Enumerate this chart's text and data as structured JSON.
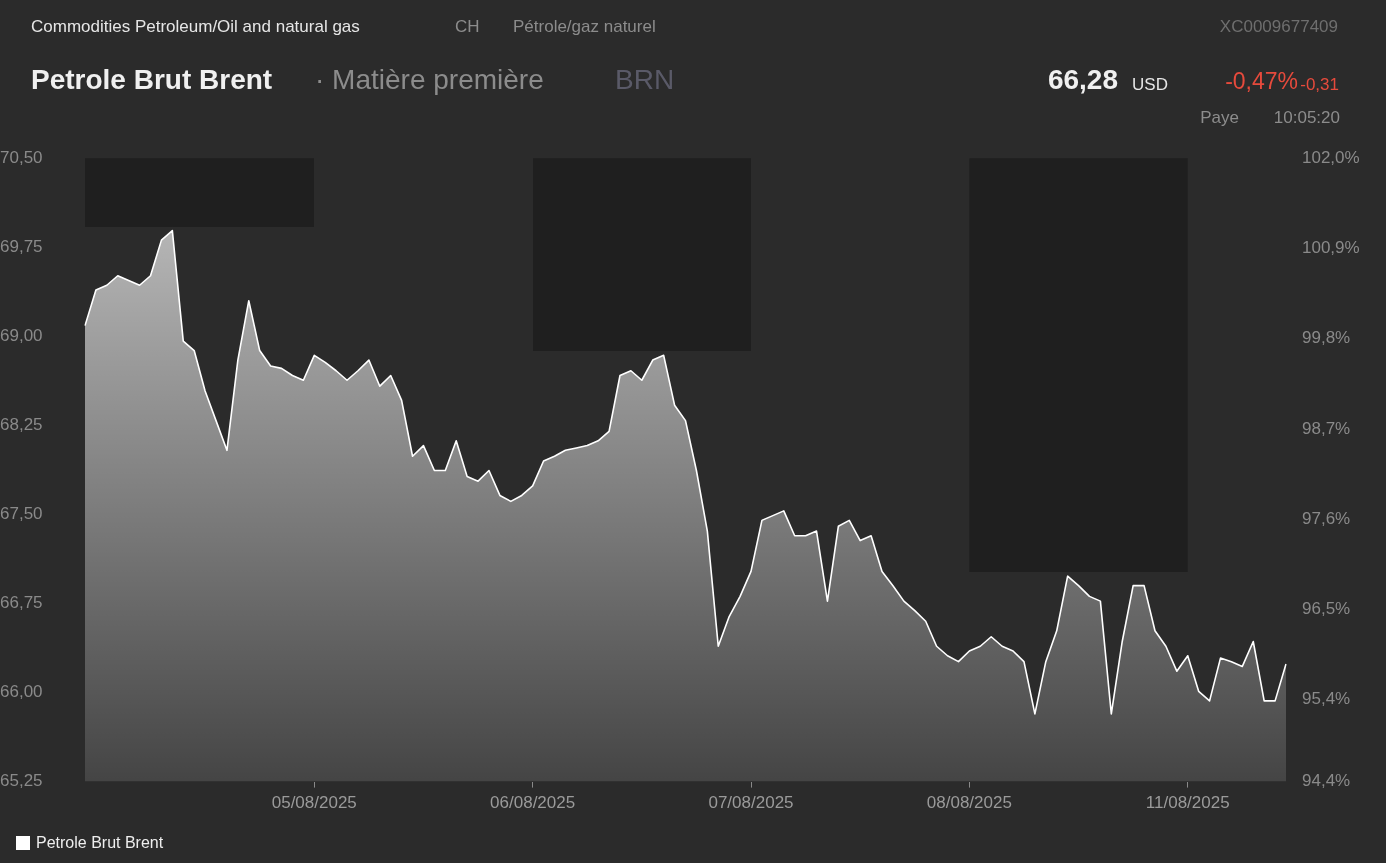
{
  "chart_data": {
    "type": "area",
    "title": "Petrole Brut Brent",
    "subtitle": "· Matière première",
    "annotations": [
      "Commodities Petroleum/Oil and natural gas",
      "CH",
      "Pétrole/gaz naturel",
      "XC0009677409",
      "BRN",
      "66,28",
      "USD",
      "-0,47%",
      "-0,31",
      "Paye",
      "10:05:20"
    ],
    "categories": [
      null,
      null,
      null,
      null,
      null,
      null,
      null,
      null,
      null,
      null,
      null,
      null,
      null,
      null,
      null,
      null,
      null,
      null,
      null,
      null,
      null,
      "05/08/2025",
      null,
      null,
      null,
      null,
      null,
      null,
      null,
      null,
      null,
      null,
      null,
      null,
      null,
      null,
      null,
      null,
      null,
      null,
      null,
      "06/08/2025",
      null,
      null,
      null,
      null,
      null,
      null,
      null,
      null,
      null,
      null,
      null,
      null,
      null,
      null,
      null,
      null,
      null,
      null,
      null,
      "07/08/2025",
      null,
      null,
      null,
      null,
      null,
      null,
      null,
      null,
      null,
      null,
      null,
      null,
      null,
      null,
      null,
      null,
      null,
      null,
      null,
      "08/08/2025",
      null,
      null,
      null,
      null,
      null,
      null,
      null,
      null,
      null,
      null,
      null,
      null,
      null,
      null,
      null,
      null,
      null,
      null,
      null,
      "11/08/2025",
      null,
      null,
      null,
      null,
      null,
      null,
      null,
      null,
      null
    ],
    "series": [
      {
        "name": "Petrole Brut Brent",
        "color": "#ffffff",
        "values": [
          69.09,
          69.39,
          69.43,
          69.51,
          69.47,
          69.43,
          69.51,
          69.81,
          69.89,
          68.96,
          68.88,
          68.54,
          68.29,
          68.04,
          68.8,
          69.3,
          68.88,
          68.75,
          68.73,
          68.67,
          68.63,
          68.84,
          68.78,
          68.71,
          68.63,
          68.71,
          68.8,
          68.58,
          68.67,
          68.46,
          67.99,
          68.08,
          67.87,
          67.87,
          68.12,
          67.82,
          67.78,
          67.87,
          67.66,
          67.61,
          67.66,
          67.74,
          67.95,
          67.99,
          68.04,
          68.06,
          68.08,
          68.12,
          68.2,
          68.67,
          68.71,
          68.63,
          68.8,
          68.84,
          68.42,
          68.29,
          67.87,
          67.36,
          66.39,
          66.64,
          66.81,
          67.02,
          67.45,
          67.49,
          67.53,
          67.32,
          67.32,
          67.36,
          66.77,
          67.4,
          67.45,
          67.28,
          67.32,
          67.02,
          66.9,
          66.77,
          66.69,
          66.6,
          66.39,
          66.31,
          66.26,
          66.35,
          66.39,
          66.47,
          66.39,
          66.35,
          66.26,
          65.82,
          66.26,
          66.52,
          66.98,
          66.9,
          66.81,
          66.77,
          65.82,
          66.43,
          66.9,
          66.9,
          66.52,
          66.39,
          66.18,
          66.31,
          66.01,
          65.93,
          66.29,
          66.26,
          66.22,
          66.43,
          65.93,
          65.93,
          66.24
        ]
      }
    ],
    "ylim": [
      65.25,
      70.5
    ],
    "yticks": [
      {
        "value": 65.25,
        "label": "65,25"
      },
      {
        "value": 66,
        "label": "66,00"
      },
      {
        "value": 66.75,
        "label": "66,75"
      },
      {
        "value": 67.5,
        "label": "67,50"
      },
      {
        "value": 68.25,
        "label": "68,25"
      },
      {
        "value": 69,
        "label": "69,00"
      },
      {
        "value": 69.75,
        "label": "69,75"
      },
      {
        "value": 70.5,
        "label": "70,50"
      }
    ],
    "y2lim": [
      94.4,
      102.0
    ],
    "y2ticks": [
      {
        "value": 94.4,
        "label": "94,4%"
      },
      {
        "value": 95.4,
        "label": "95,4%"
      },
      {
        "value": 96.5,
        "label": "96,5%"
      },
      {
        "value": 97.6,
        "label": "97,6%"
      },
      {
        "value": 98.7,
        "label": "98,7%"
      },
      {
        "value": 99.8,
        "label": "99,8%"
      },
      {
        "value": 100.9,
        "label": "100,9%"
      },
      {
        "value": 102.0,
        "label": "102,0%"
      }
    ],
    "legend": "bottom left",
    "marker": "none",
    "line_style": "solid"
  }
}
